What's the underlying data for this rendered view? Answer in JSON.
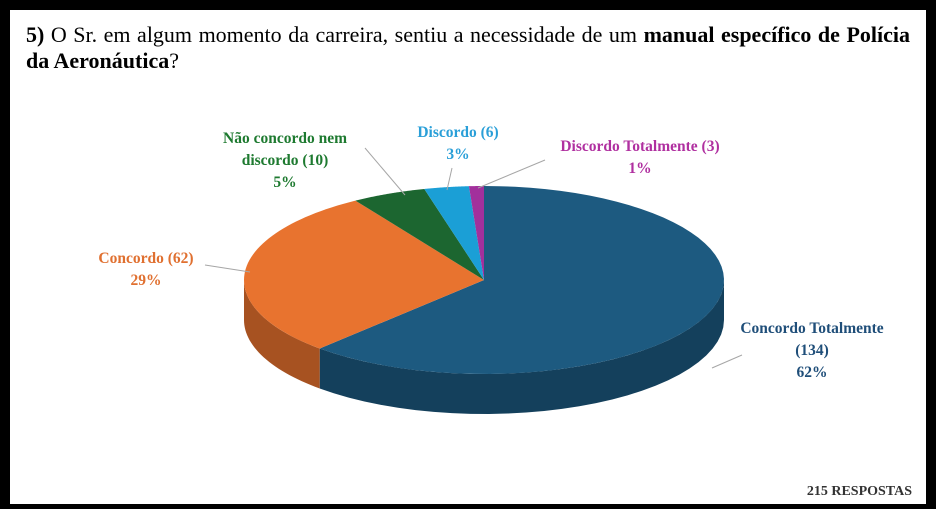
{
  "chart_data": {
    "type": "pie",
    "title": [
      "5)",
      " O Sr. em algum momento da carreira, sentiu a necessidade de um ",
      "manual específico de Polícia da Aeronáutica",
      "?"
    ],
    "categories": [
      "Concordo Totalmente (134)",
      "Concordo (62)",
      "Não concordo nem discordo (10)",
      "Discordo (6)",
      "Discordo Totalmente (3)"
    ],
    "values": [
      62,
      29,
      5,
      3,
      1
    ],
    "value_labels": [
      "62%",
      "29%",
      "5%",
      "3%",
      "1%"
    ],
    "colors": [
      "#1d5a80",
      "#e8732f",
      "#1c6630",
      "#1b9fd6",
      "#a2309c"
    ],
    "label_colors": [
      "#1f4e79",
      "#e07030",
      "#1e7a30",
      "#2a9fd8",
      "#b030a0"
    ],
    "footnote": "215 RESPOSTAS"
  }
}
